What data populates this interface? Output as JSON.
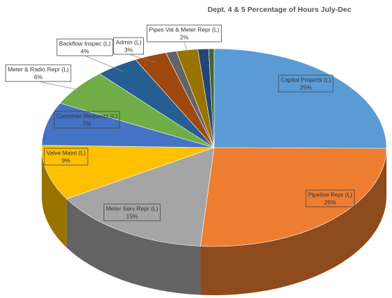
{
  "chart_data": {
    "type": "pie",
    "title": "Dept. 4 & 5 Percentage of Hours July-Dec",
    "categories": [
      "Capital Projects (L)",
      "Pipeline Repr (L)",
      "Meter Serv Repr (L)",
      "Valve Maint (L)",
      "Customer Requests (L)",
      "Meter & Radio Repr (L)",
      "Backflow Inspec (L)",
      "Admin (L)",
      null,
      "Pipes Val & Meter Repr (L)",
      null,
      null
    ],
    "values": [
      25,
      26,
      15,
      9,
      7,
      6,
      4,
      3,
      1,
      2,
      1,
      0.5
    ],
    "value_labels": [
      "25%",
      "26%",
      "15%",
      "9%",
      "7%",
      "6%",
      "4%",
      "3%",
      null,
      "2%",
      null,
      null
    ],
    "colors": [
      "#5b9bd5",
      "#ed7d31",
      "#a5a5a5",
      "#ffc000",
      "#4472c4",
      "#70ad47",
      "#255e91",
      "#9e480e",
      "#636363",
      "#997300",
      "#264478",
      "#43682b"
    ]
  }
}
